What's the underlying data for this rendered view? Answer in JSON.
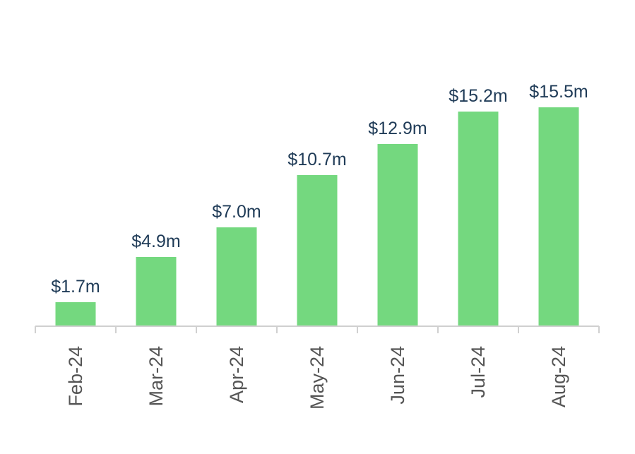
{
  "colors": {
    "bar": "#74d87f",
    "label": "#1f3b57",
    "axis": "#d0d0d0",
    "tick_text": "#555555"
  },
  "chart_data": {
    "type": "bar",
    "categories": [
      "Feb-24",
      "Mar-24",
      "Apr-24",
      "May-24",
      "Jun-24",
      "Jul-24",
      "Aug-24"
    ],
    "values": [
      1.7,
      4.9,
      7.0,
      10.7,
      12.9,
      15.2,
      15.5
    ],
    "data_labels": [
      "$1.7m",
      "$4.9m",
      "$7.0m",
      "$10.7m",
      "$12.9m",
      "$15.2m",
      "$15.5m"
    ],
    "title": "",
    "xlabel": "",
    "ylabel": "",
    "ylim": [
      0,
      15.5
    ],
    "grid": false,
    "legend": "none"
  }
}
